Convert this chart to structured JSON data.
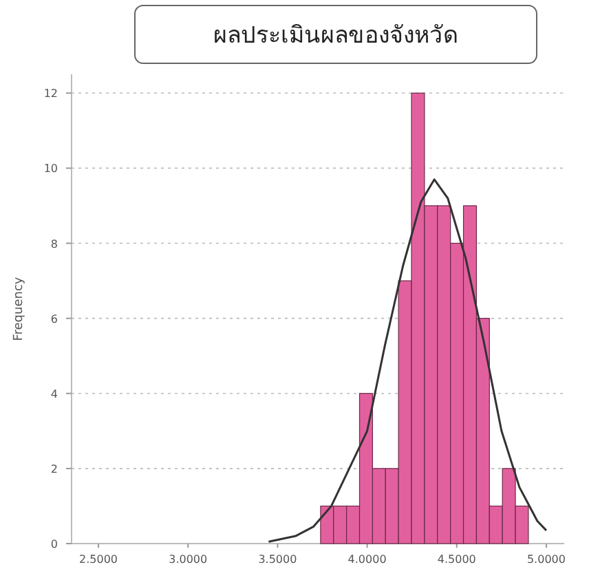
{
  "chart_data": {
    "type": "histogram",
    "title": "ผลประเมินผลของจังหวัด",
    "ylabel": "Frequency",
    "color": "#e3609f",
    "bins": [
      3.74,
      3.8125,
      3.885,
      3.9575,
      4.03,
      4.1025,
      4.175,
      4.2475,
      4.32,
      4.3925,
      4.465,
      4.5375,
      4.61,
      4.6825,
      4.755,
      4.8275,
      4.9
    ],
    "values": [
      1,
      1,
      1,
      4,
      2,
      2,
      7,
      12,
      9,
      9,
      8,
      9,
      6,
      1,
      2,
      1
    ],
    "series": [
      {
        "type": "line",
        "color": "#333333",
        "x": [
          3.45,
          3.6,
          3.7,
          3.8,
          3.9,
          4.0,
          4.1,
          4.2,
          4.3,
          4.375,
          4.45,
          4.55,
          4.65,
          4.75,
          4.85,
          4.95,
          5.0
        ],
        "values": [
          0.05,
          0.2,
          0.45,
          1.0,
          2.0,
          3.0,
          5.3,
          7.4,
          9.1,
          9.7,
          9.2,
          7.6,
          5.4,
          3.0,
          1.5,
          0.6,
          0.35
        ]
      }
    ],
    "xlim": [
      2.35,
      5.1
    ],
    "ylim": [
      0,
      12.5
    ],
    "xticks": [
      {
        "value": 2.5,
        "label": "2.5000"
      },
      {
        "value": 3.0,
        "label": "3.0000"
      },
      {
        "value": 3.5,
        "label": "3.5000"
      },
      {
        "value": 4.0,
        "label": "4.0000"
      },
      {
        "value": 4.5,
        "label": "4.5000"
      },
      {
        "value": 5.0,
        "label": "5.0000"
      }
    ],
    "yticks": [
      0,
      2,
      4,
      6,
      8,
      10,
      12
    ],
    "grid": "y"
  }
}
